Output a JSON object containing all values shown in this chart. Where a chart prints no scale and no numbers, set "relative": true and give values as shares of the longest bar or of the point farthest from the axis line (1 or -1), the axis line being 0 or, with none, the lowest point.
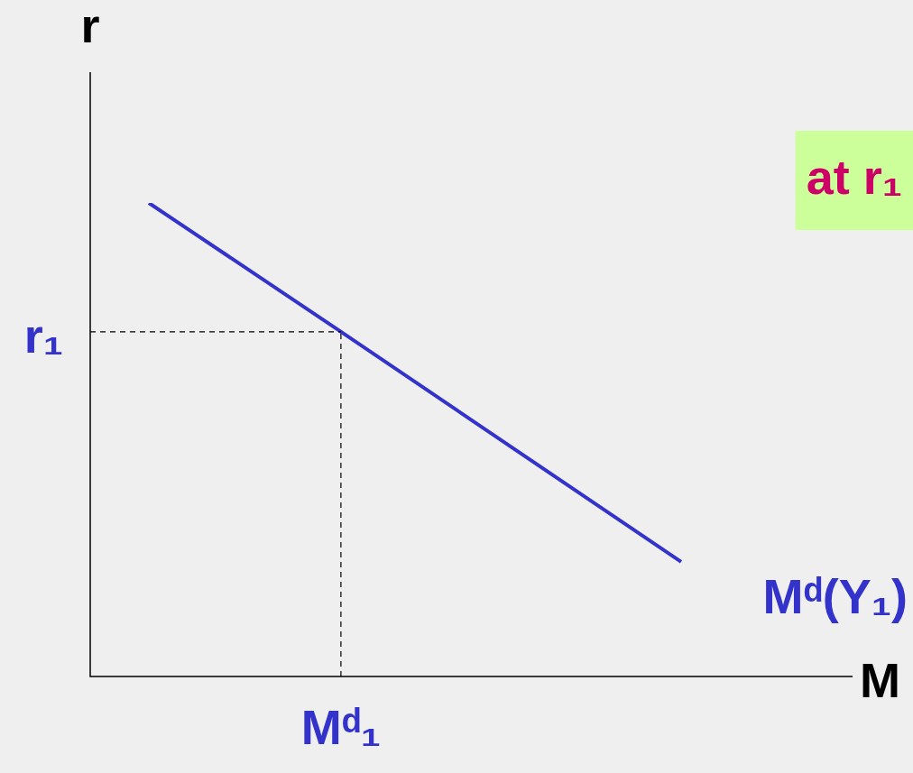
{
  "chart_data": {
    "type": "line",
    "relative": true,
    "legend": false,
    "marker": "none",
    "line_style": "solid",
    "xlabel": "M",
    "ylabel": "r",
    "categories": [
      null,
      null,
      null,
      null,
      null,
      null,
      null,
      null,
      null,
      null,
      null,
      null,
      null,
      null,
      null,
      null,
      null,
      null
    ],
    "series": [
      {
        "name": "Mᵈ(Y₁)",
        "color": "#3333cc",
        "values": [
          1,
          null,
          null,
          null,
          null,
          null,
          0.734,
          null,
          null,
          null,
          null,
          null,
          null,
          null,
          null,
          null,
          null,
          0.242
        ]
      }
    ],
    "ref_lines": [
      {
        "axis": "y",
        "value": 0.728,
        "label": "r₁",
        "color": "#000000",
        "line_style": "dashed"
      }
    ],
    "annotations": [
      {
        "text": "Mᵈ₁",
        "y": 0.728
      },
      "at r₁"
    ]
  }
}
